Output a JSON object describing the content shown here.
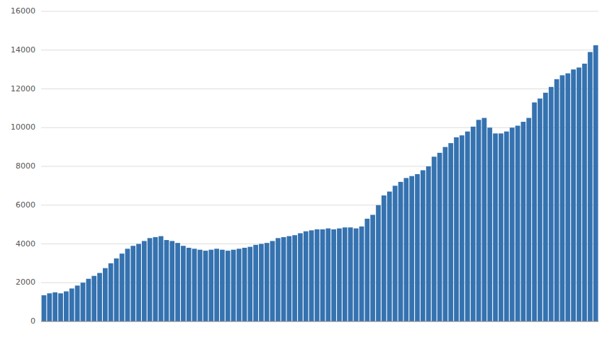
{
  "chart_data": {
    "type": "bar",
    "values": [
      1350,
      1450,
      1500,
      1450,
      1550,
      1700,
      1850,
      2000,
      2200,
      2350,
      2500,
      2750,
      3000,
      3250,
      3500,
      3750,
      3900,
      4000,
      4150,
      4300,
      4350,
      4400,
      4200,
      4150,
      4050,
      3900,
      3800,
      3750,
      3700,
      3650,
      3700,
      3750,
      3700,
      3650,
      3700,
      3750,
      3800,
      3850,
      3950,
      4000,
      4050,
      4150,
      4300,
      4350,
      4400,
      4450,
      4550,
      4650,
      4700,
      4750,
      4750,
      4800,
      4750,
      4800,
      4850,
      4850,
      4800,
      4900,
      5300,
      5500,
      6000,
      6500,
      6700,
      7000,
      7200,
      7400,
      7500,
      7600,
      7800,
      8000,
      8500,
      8700,
      9000,
      9200,
      9500,
      9600,
      9800,
      10050,
      10400,
      10500,
      10000,
      9700,
      9700,
      9800,
      10000,
      10100,
      10300,
      10500,
      11300,
      11500,
      11800,
      12100,
      12500,
      12700,
      12800,
      13000,
      13100,
      13300,
      13900,
      14250
    ],
    "color": "#3572B0",
    "ylim": [
      0,
      16000
    ],
    "yticks": [
      0,
      2000,
      4000,
      6000,
      8000,
      10000,
      12000,
      14000,
      16000
    ],
    "grid": true,
    "tick_labels": "y"
  }
}
